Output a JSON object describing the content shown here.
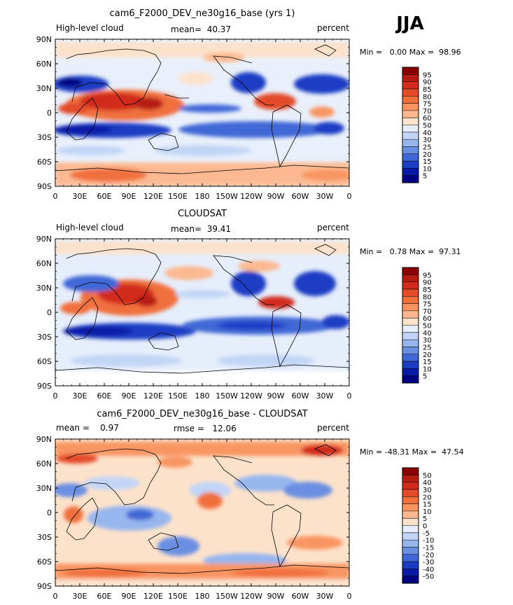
{
  "season": "JJA",
  "panels": [
    {
      "title": "cam6_F2000_DEV_ne30g16_base (yrs 1)",
      "left_label": "High-level cloud",
      "center_label": "mean=  40.37",
      "right_label": "percent",
      "minmax": "Min =   0.00 Max =  98.96",
      "colorbar": [
        "95",
        "90",
        "85",
        "80",
        "75",
        "70",
        "60",
        "50",
        "40",
        "30",
        "25",
        "20",
        "15",
        "10",
        "5"
      ],
      "colors": [
        "#8b0000",
        "#b71c13",
        "#d22b1d",
        "#e34b2a",
        "#f0703c",
        "#f89562",
        "#fcb991",
        "#fde2cb",
        "#e6eefb",
        "#c3d5f6",
        "#97b6ee",
        "#6a8fe2",
        "#3f67d6",
        "#1c3cc4",
        "#0a1aa8",
        "#000080"
      ]
    },
    {
      "title": "CLOUDSAT",
      "left_label": "High-level cloud",
      "center_label": "mean=  39.41",
      "right_label": "percent",
      "minmax": "Min =   0.78 Max =  97.31",
      "colorbar": [
        "95",
        "90",
        "85",
        "80",
        "75",
        "70",
        "60",
        "50",
        "40",
        "30",
        "25",
        "20",
        "15",
        "10",
        "5"
      ],
      "colors": [
        "#8b0000",
        "#b71c13",
        "#d22b1d",
        "#e34b2a",
        "#f0703c",
        "#f89562",
        "#fcb991",
        "#fde2cb",
        "#e6eefb",
        "#c3d5f6",
        "#97b6ee",
        "#6a8fe2",
        "#3f67d6",
        "#1c3cc4",
        "#0a1aa8",
        "#000080"
      ]
    },
    {
      "title": "cam6_F2000_DEV_ne30g16_base - CLOUDSAT",
      "left_label": "mean =    0.97",
      "center_label": "rmse =   12.06",
      "right_label": "percent",
      "minmax": "Min = -48.31 Max =  47.54",
      "colorbar": [
        "50",
        "40",
        "30",
        "20",
        "15",
        "10",
        "5",
        "0",
        "-5",
        "-10",
        "-15",
        "-20",
        "-30",
        "-40",
        "-50"
      ],
      "colors": [
        "#8b0000",
        "#b71c13",
        "#d22b1d",
        "#e34b2a",
        "#f0703c",
        "#f89562",
        "#fcb991",
        "#fde2cb",
        "#e6eefb",
        "#c3d5f6",
        "#97b6ee",
        "#6a8fe2",
        "#3f67d6",
        "#1c3cc4",
        "#0a1aa8",
        "#000080"
      ]
    }
  ],
  "chart_data": {
    "type": "heatmap",
    "title": "High-level cloud, JJA",
    "xlabels": [
      "0",
      "30E",
      "60E",
      "90E",
      "120E",
      "150E",
      "180",
      "150W",
      "120W",
      "90W",
      "60W",
      "30W",
      "0"
    ],
    "ylabels": [
      "90N",
      "60N",
      "30N",
      "0",
      "30S",
      "60S",
      "90S"
    ],
    "xlim": [
      0,
      360
    ],
    "ylim": [
      -90,
      90
    ],
    "units": "percent"
  }
}
